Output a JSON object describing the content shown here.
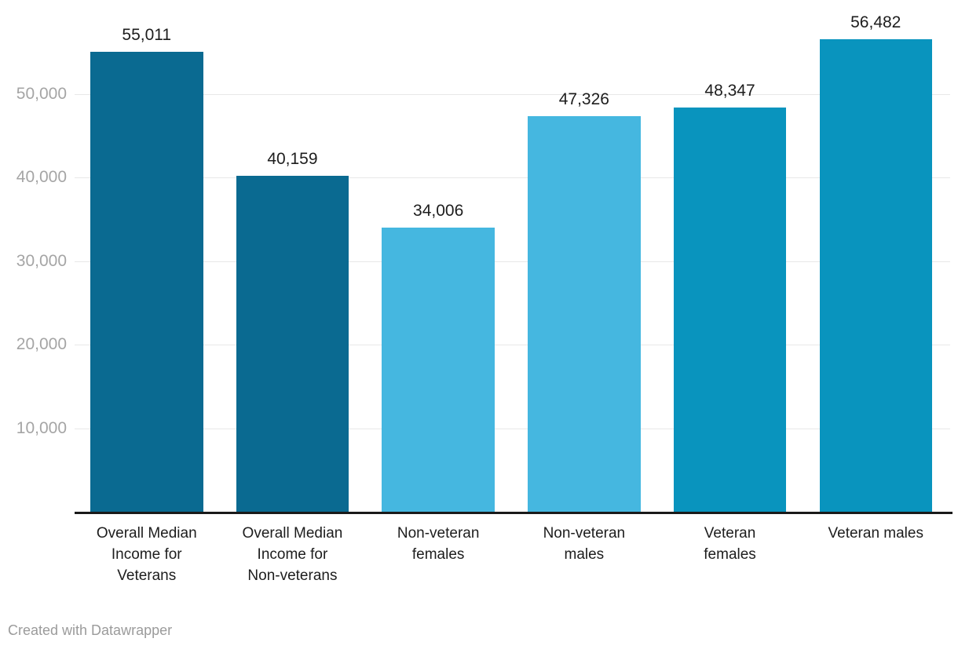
{
  "chart_data": {
    "type": "bar",
    "categories": [
      "Overall Median Income for Veterans",
      "Overall Median Income for Non-veterans",
      "Non-veteran females",
      "Non-veteran males",
      "Veteran females",
      "Veteran males"
    ],
    "category_display_lines": [
      "Overall Median\nIncome for\nVeterans",
      "Overall Median\nIncome for\nNon-veterans",
      "Non-veteran\nfemales",
      "Non-veteran\nmales",
      "Veteran\nfemales",
      "Veteran males"
    ],
    "values": [
      55011,
      40159,
      34006,
      47326,
      48347,
      56482
    ],
    "value_labels": [
      "55,011",
      "40,159",
      "34,006",
      "47,326",
      "48,347",
      "56,482"
    ],
    "bar_colors": [
      "#0a6a91",
      "#0a6a91",
      "#45b7e0",
      "#45b7e0",
      "#0994be",
      "#0994be"
    ],
    "title": "",
    "xlabel": "",
    "ylabel": "",
    "ylim": [
      0,
      61200
    ],
    "yticks": [
      10000,
      20000,
      30000,
      40000,
      50000
    ],
    "ytick_labels": [
      "10,000",
      "20,000",
      "30,000",
      "40,000",
      "50,000"
    ],
    "grid": true,
    "legend_position": "none"
  },
  "colors": {
    "gridline": "#e8e8e8",
    "axis_line": "#1a1a1a",
    "tick_label": "#a5a5a5",
    "value_label": "#1d1d1d",
    "category_label": "#1d1d1d",
    "footer_text": "#9b9b9b"
  },
  "footer": {
    "attribution": "Created with Datawrapper"
  }
}
